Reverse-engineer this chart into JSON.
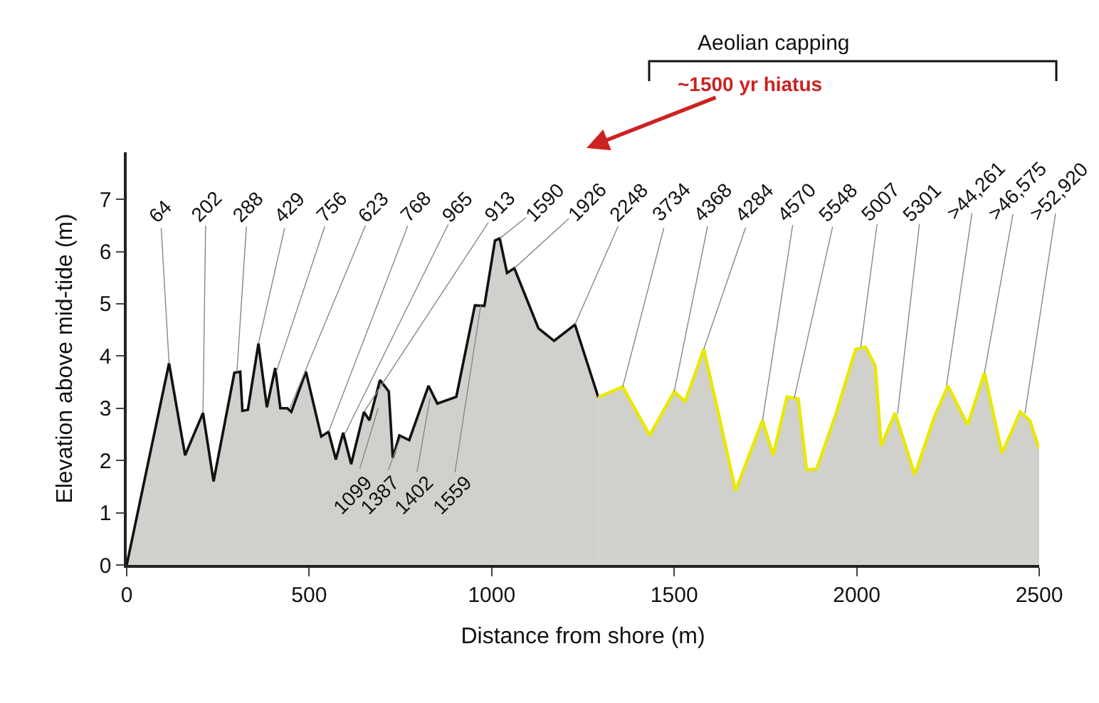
{
  "chart_data": {
    "type": "area",
    "xlabel": "Distance from shore (m)",
    "ylabel": "Elevation above mid-tide (m)",
    "xlim": [
      0,
      2500
    ],
    "xticks": [
      0,
      500,
      1000,
      1500,
      2000,
      2500
    ],
    "ylim": [
      0,
      7.9
    ],
    "yticks": [
      0,
      1,
      2,
      3,
      4,
      5,
      6,
      7
    ],
    "series": [
      {
        "color": "#111111",
        "x": [
          0,
          116,
          160,
          209,
          238,
          295,
          311,
          317,
          332,
          361,
          384,
          407,
          421,
          440,
          451,
          491,
          533,
          553,
          573,
          593,
          615,
          650,
          665,
          694,
          718,
          729,
          747,
          774,
          827,
          851,
          903,
          954,
          980,
          1009,
          1022,
          1042,
          1062,
          1128,
          1171,
          1228,
          1292
        ],
        "values": [
          0,
          3.86,
          2.1,
          2.91,
          1.6,
          3.68,
          3.7,
          2.95,
          2.97,
          4.24,
          3.02,
          3.77,
          3.0,
          3.0,
          2.93,
          3.7,
          2.46,
          2.55,
          2.02,
          2.53,
          1.93,
          2.93,
          2.77,
          3.54,
          3.32,
          2.05,
          2.48,
          2.39,
          3.43,
          3.09,
          3.22,
          4.97,
          4.96,
          6.21,
          6.25,
          5.59,
          5.68,
          4.53,
          4.29,
          4.6,
          3.21
        ]
      },
      {
        "color": "#e8e800",
        "x": [
          1292,
          1359,
          1433,
          1500,
          1530,
          1581,
          1621,
          1668,
          1742,
          1771,
          1809,
          1840,
          1863,
          1890,
          1944,
          1997,
          2024,
          2051,
          2067,
          2105,
          2159,
          2212,
          2250,
          2304,
          2350,
          2398,
          2448,
          2474,
          2500
        ],
        "values": [
          3.21,
          3.41,
          2.48,
          3.32,
          3.13,
          4.13,
          2.91,
          1.42,
          2.77,
          2.1,
          3.22,
          3.18,
          1.82,
          1.84,
          2.91,
          4.13,
          4.17,
          3.81,
          2.28,
          2.91,
          1.73,
          2.82,
          3.43,
          2.68,
          3.68,
          2.14,
          2.93,
          2.77,
          2.23
        ]
      }
    ],
    "annotations": [
      "Aeolian capping",
      "~1500 yr hiatus",
      {
        "text": "64",
        "x": 116,
        "y": 3.86
      },
      {
        "text": "202",
        "x": 209,
        "y": 2.91
      },
      {
        "text": "288",
        "x": 302,
        "y": 3.7
      },
      {
        "text": "429",
        "x": 361,
        "y": 4.24
      },
      {
        "text": "756",
        "x": 410,
        "y": 3.7
      },
      {
        "text": "623",
        "x": 447,
        "y": 3.0
      },
      {
        "text": "768",
        "x": 553,
        "y": 2.55
      },
      {
        "text": "965",
        "x": 597,
        "y": 2.5
      },
      {
        "text": "913",
        "x": 650,
        "y": 2.93
      },
      {
        "text": "1590",
        "x": 1022,
        "y": 6.25
      },
      {
        "text": "1926",
        "x": 1062,
        "y": 5.68
      },
      {
        "text": "2248",
        "x": 1228,
        "y": 4.6
      },
      {
        "text": "3734",
        "x": 1359,
        "y": 3.41
      },
      {
        "text": "4368",
        "x": 1500,
        "y": 3.32
      },
      {
        "text": "4284",
        "x": 1581,
        "y": 4.13
      },
      {
        "text": "4570",
        "x": 1742,
        "y": 2.77
      },
      {
        "text": "5548",
        "x": 1829,
        "y": 3.2
      },
      {
        "text": "5007",
        "x": 2011,
        "y": 4.17
      },
      {
        "text": "5301",
        "x": 2112,
        "y": 2.9
      },
      {
        "text": ">44,261",
        "x": 2246,
        "y": 3.43
      },
      {
        "text": ">46,575",
        "x": 2350,
        "y": 3.68
      },
      {
        "text": ">52,920",
        "x": 2461,
        "y": 2.9
      },
      {
        "text": "1099",
        "x": 689,
        "y": 3.0
      },
      {
        "text": "1387",
        "x": 751,
        "y": 2.45
      },
      {
        "text": "1402",
        "x": 831,
        "y": 3.2
      },
      {
        "text": "1559",
        "x": 970,
        "y": 4.97
      }
    ]
  }
}
